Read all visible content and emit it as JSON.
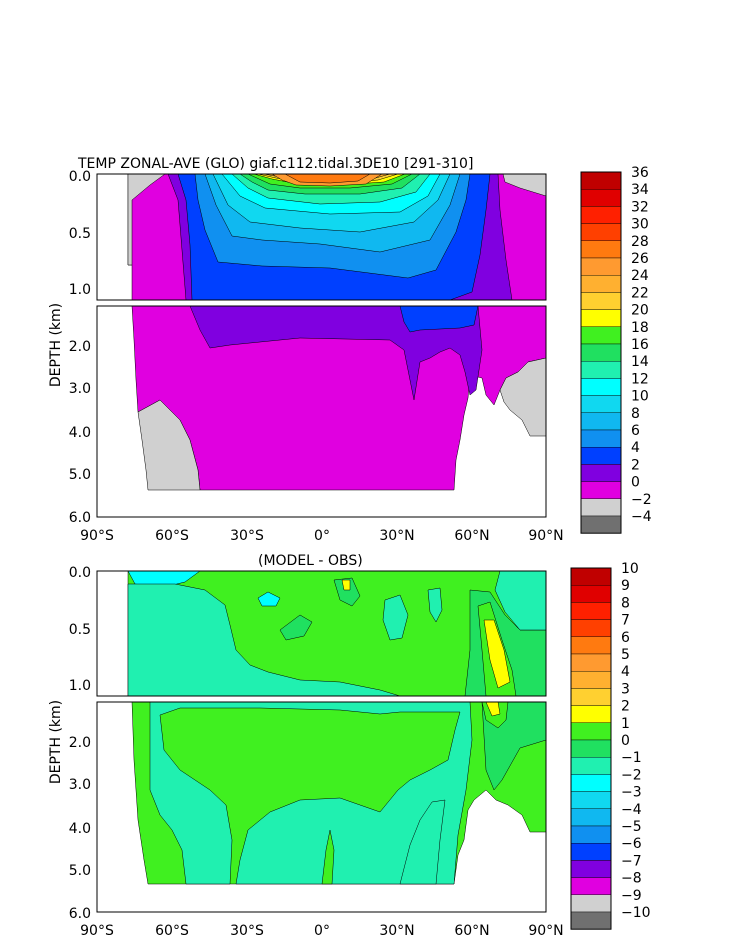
{
  "chart_data": [
    {
      "type": "heatmap",
      "title": "TEMP ZONAL-AVE (GLO) giaf.c112.tidal.3DE10 [291-310]",
      "ylabel": "DEPTH (km)",
      "x_ticks": [
        "90°S",
        "60°S",
        "30°S",
        "0°",
        "30°N",
        "60°N",
        "90°N"
      ],
      "y_ticks_upper": [
        "0.0",
        "0.5",
        "1.0"
      ],
      "y_ticks_lower": [
        "2.0",
        "3.0",
        "4.0",
        "5.0",
        "6.0"
      ],
      "xlim": [
        -90,
        90
      ],
      "ylim": [
        0,
        6
      ],
      "colorbar": {
        "labels": [
          "36",
          "34",
          "32",
          "30",
          "28",
          "26",
          "24",
          "22",
          "20",
          "18",
          "16",
          "14",
          "12",
          "10",
          "8",
          "6",
          "4",
          "2",
          "0",
          "-2",
          "-4"
        ],
        "colors": [
          "#c00000",
          "#e00000",
          "#ff2000",
          "#ff4000",
          "#ff7a10",
          "#ff9a30",
          "#ffb030",
          "#ffd030",
          "#ffff00",
          "#40f020",
          "#20e060",
          "#20f0b0",
          "#00ffff",
          "#10d8f0",
          "#10b8f0",
          "#1090f0",
          "#0040ff",
          "#8000e0",
          "#e000e0",
          "#d0d0d0",
          "#707070"
        ]
      },
      "contour_levels_C": [
        0,
        2,
        4,
        6,
        8,
        10,
        12,
        14,
        16,
        18,
        20,
        22,
        24,
        26,
        28
      ]
    },
    {
      "type": "heatmap",
      "title": "(MODEL - OBS)",
      "ylabel": "DEPTH (km)",
      "x_ticks": [
        "90°S",
        "60°S",
        "30°S",
        "0°",
        "30°N",
        "60°N",
        "90°N"
      ],
      "y_ticks_upper": [
        "0.0",
        "0.5",
        "1.0"
      ],
      "y_ticks_lower": [
        "2.0",
        "3.0",
        "4.0",
        "5.0",
        "6.0"
      ],
      "xlim": [
        -90,
        90
      ],
      "ylim": [
        0,
        6
      ],
      "colorbar": {
        "labels": [
          "10",
          "9",
          "8",
          "7",
          "6",
          "5",
          "4",
          "3",
          "2",
          "1",
          "0",
          "-1",
          "-2",
          "-3",
          "-4",
          "-5",
          "-6",
          "-7",
          "-8",
          "-9",
          "-10"
        ],
        "colors": [
          "#c00000",
          "#e00000",
          "#ff2000",
          "#ff4000",
          "#ff7a10",
          "#ff9a30",
          "#ffb030",
          "#ffd030",
          "#ffff00",
          "#40f020",
          "#20e060",
          "#20f0b0",
          "#00ffff",
          "#10d8f0",
          "#10b8f0",
          "#1090f0",
          "#0040ff",
          "#8000e0",
          "#e000e0",
          "#d0d0d0",
          "#707070"
        ]
      }
    }
  ]
}
